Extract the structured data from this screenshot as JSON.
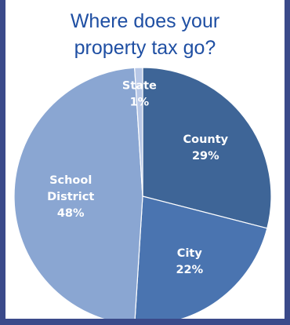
{
  "chart_data": {
    "type": "pie",
    "title_lines": [
      "Where does your",
      "property tax go?"
    ],
    "slices": [
      {
        "label": "County",
        "value_label": "29%",
        "value": 29,
        "color": "#3e6597"
      },
      {
        "label": "City",
        "value_label": "22%",
        "value": 22,
        "color": "#4a74b0"
      },
      {
        "label": "School District",
        "label_lines": [
          "School",
          "District"
        ],
        "value_label": "48%",
        "value": 48,
        "color": "#8aa6d2"
      },
      {
        "label": "State",
        "value_label": "1%",
        "value": 1,
        "color": "#b7c7e6"
      }
    ]
  }
}
